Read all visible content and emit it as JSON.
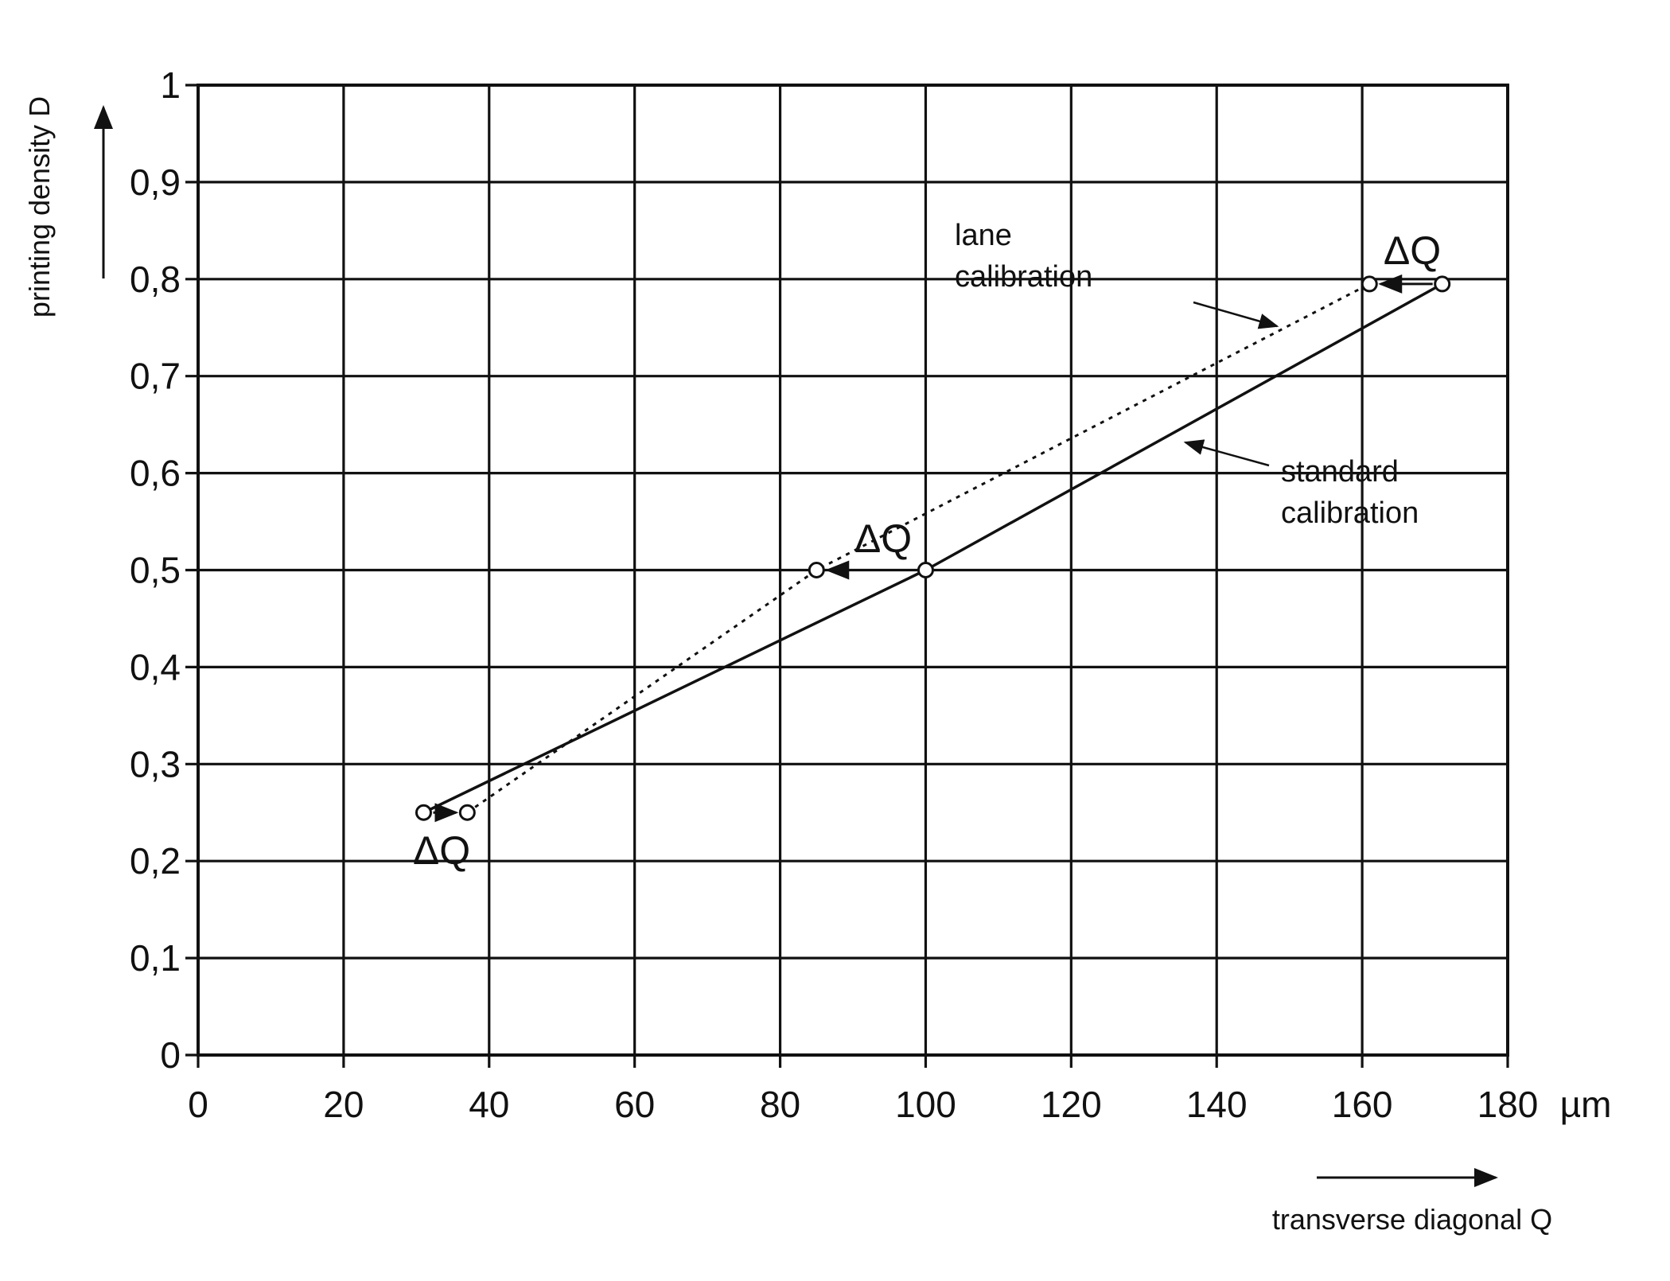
{
  "chart_data": {
    "type": "line",
    "xlabel": "transverse diagonal Q",
    "ylabel": "printing density D",
    "x_unit": "µm",
    "xlim": [
      0,
      180
    ],
    "ylim": [
      0,
      1
    ],
    "x_ticks": [
      0,
      20,
      40,
      60,
      80,
      100,
      120,
      140,
      160,
      180
    ],
    "x_tick_labels": [
      "0",
      "20",
      "40",
      "60",
      "80",
      "100",
      "120",
      "140",
      "160",
      "180"
    ],
    "y_ticks": [
      0,
      0.1,
      0.2,
      0.3,
      0.4,
      0.5,
      0.6,
      0.7,
      0.8,
      0.9,
      1
    ],
    "y_tick_labels": [
      "0",
      "0,1",
      "0,2",
      "0,3",
      "0,4",
      "0,5",
      "0,6",
      "0,7",
      "0,8",
      "0,9",
      "1"
    ],
    "grid": true,
    "series": [
      {
        "name": "standard calibration",
        "style": "solid",
        "x": [
          31,
          100,
          171
        ],
        "y": [
          0.25,
          0.5,
          0.795
        ]
      },
      {
        "name": "lane calibration",
        "style": "dotted",
        "x": [
          37,
          85,
          161
        ],
        "y": [
          0.25,
          0.5,
          0.795
        ]
      }
    ],
    "annotations": {
      "lane_label": [
        "lane",
        "calibration"
      ],
      "standard_label": [
        "standard",
        "calibration"
      ],
      "delta_q": "ΔQ"
    }
  },
  "colors": {
    "ink": "#111111",
    "background": "#ffffff"
  }
}
